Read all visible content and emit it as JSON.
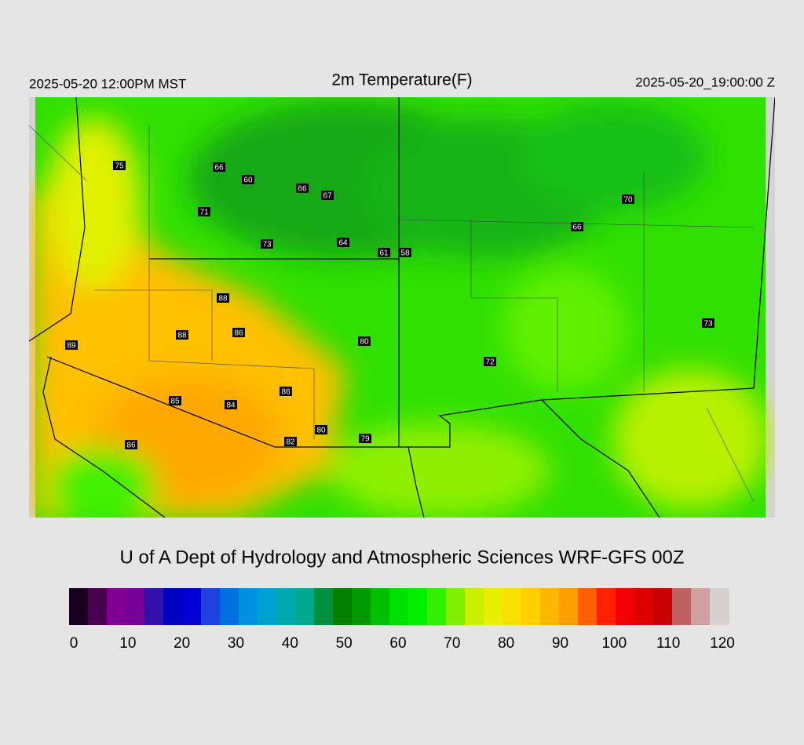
{
  "header": {
    "left": "2025-05-20 12:00PM MST",
    "title": "2m Temperature(F)",
    "right": "2025-05-20_19:00:00 Z"
  },
  "stations": [
    75,
    66,
    60,
    66,
    67,
    71,
    73,
    64,
    61,
    58,
    70,
    66,
    88,
    88,
    86,
    89,
    80,
    72,
    73,
    86,
    85,
    84,
    80,
    82,
    79,
    86
  ],
  "footer": "U of A Dept of Hydrology and Atmospheric Sciences WRF-GFS 00Z",
  "colorbar": {
    "ticks": [
      0,
      10,
      20,
      30,
      40,
      50,
      60,
      70,
      80,
      90,
      100,
      110,
      120
    ],
    "colors": [
      "#1a0020",
      "#4a0050",
      "#800090",
      "#7a009a",
      "#3010a8",
      "#0000c0",
      "#0000d0",
      "#2040e0",
      "#0070e0",
      "#0090e0",
      "#00a0d0",
      "#00a8b0",
      "#00a890",
      "#009040",
      "#008000",
      "#009800",
      "#00c000",
      "#00e000",
      "#00f000",
      "#30f000",
      "#80f000",
      "#c8f000",
      "#e8f000",
      "#f8e000",
      "#ffd000",
      "#ffb800",
      "#ffa000",
      "#ff6000",
      "#ff2000",
      "#f00000",
      "#e00000",
      "#c80000",
      "#c06060",
      "#d0a0a0",
      "#d8d0d0"
    ]
  }
}
